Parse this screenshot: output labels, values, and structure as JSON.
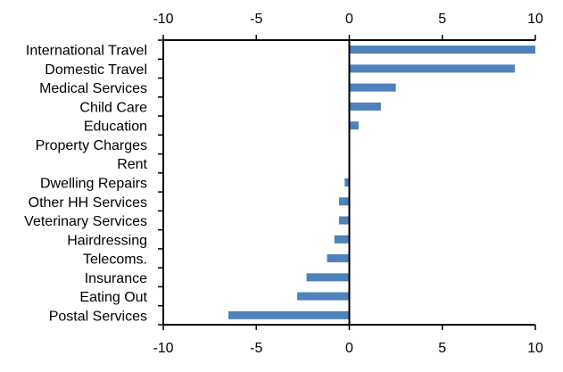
{
  "chart_data": {
    "type": "bar",
    "orientation": "horizontal",
    "categories": [
      "International Travel",
      "Domestic Travel",
      "Medical Services",
      "Child Care",
      "Education",
      "Property Charges",
      "Rent",
      "Dwelling Repairs",
      "Other HH Services",
      "Veterinary Services",
      "Hairdressing",
      "Telecoms.",
      "Insurance",
      "Eating Out",
      "Postal Services"
    ],
    "values": [
      10.0,
      8.9,
      2.5,
      1.7,
      0.5,
      0.0,
      0.0,
      -0.25,
      -0.55,
      -0.55,
      -0.8,
      -1.2,
      -2.3,
      -2.8,
      -6.5
    ],
    "xlim": [
      -10,
      10
    ],
    "xticks": [
      "-10",
      "-5",
      "0",
      "5",
      "10"
    ],
    "xtick_values": [
      -10,
      -5,
      0,
      5,
      10
    ],
    "axis_position": "top and bottom",
    "grid": false,
    "bar_color": "#4f81bd",
    "title": "",
    "xlabel": "",
    "ylabel": ""
  }
}
